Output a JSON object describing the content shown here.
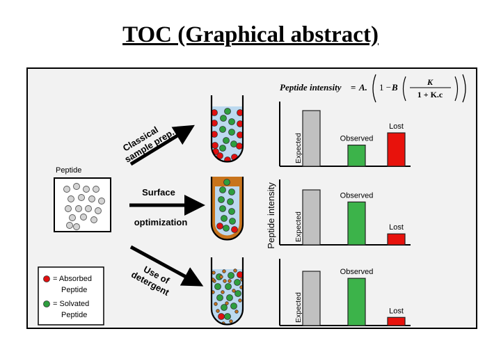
{
  "title": "TOC (Graphical abstract)",
  "equation": {
    "lhs": "Peptide intensity",
    "eq": "=",
    "A": "A.",
    "one_minus": "1 −",
    "B": "B",
    "num": "K",
    "den": "1 + K.c"
  },
  "peptide_label": "Peptide",
  "arrows": {
    "top": [
      "Classical",
      "sample prep."
    ],
    "middle": [
      "Surface",
      "optimization"
    ],
    "bottom": [
      "Use of",
      "detergent"
    ]
  },
  "legend": {
    "absorbed": [
      "= Absorbed",
      "Peptide"
    ],
    "solvated": [
      "= Solvated",
      "Peptide"
    ],
    "absorbed_color": "#e01010",
    "solvated_color": "#2e9e3e"
  },
  "y_axis_label": "Peptide intensity",
  "colors": {
    "expected": "#c0c0c0",
    "observed": "#3cb34a",
    "lost": "#e8120c",
    "tube_liquid": "#bcd9ef",
    "tube_coating": "#c8741c"
  },
  "chart_data": [
    {
      "type": "bar",
      "categories": [
        "Expected",
        "Observed",
        "Lost"
      ],
      "values": [
        100,
        38,
        60
      ],
      "ylim": [
        0,
        100
      ]
    },
    {
      "type": "bar",
      "categories": [
        "Expected",
        "Observed",
        "Lost"
      ],
      "values": [
        100,
        78,
        20
      ],
      "ylim": [
        0,
        100
      ]
    },
    {
      "type": "bar",
      "categories": [
        "Expected",
        "Observed",
        "Lost"
      ],
      "values": [
        100,
        87,
        15
      ],
      "ylim": [
        0,
        100
      ]
    }
  ]
}
